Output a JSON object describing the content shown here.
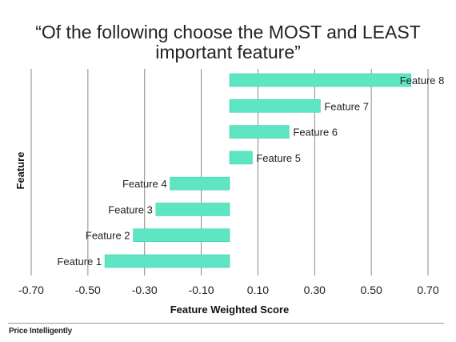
{
  "title_line1": "“Of the following choose the MOST and LEAST",
  "title_line2": "important feature”",
  "brand": "Price Intelligently",
  "colors": {
    "bar": "#5ee6c4",
    "bar_edge": "#3fcfab",
    "grid": "#8a8a8a"
  },
  "chart_data": {
    "type": "bar",
    "orientation": "horizontal",
    "categories": [
      "Feature 1",
      "Feature 2",
      "Feature 3",
      "Feature 4",
      "Feature 5",
      "Feature 6",
      "Feature 7",
      "Feature 8"
    ],
    "values": [
      -0.44,
      -0.34,
      -0.26,
      -0.21,
      0.08,
      0.21,
      0.32,
      0.64
    ],
    "xlabel": "Feature Weighted Score",
    "ylabel": "Feature",
    "xlim": [
      -0.7,
      0.7
    ],
    "xticks": [
      "-0.70",
      "-0.50",
      "-0.30",
      "-0.10",
      "0.10",
      "0.30",
      "0.50",
      "0.70"
    ],
    "grid": "vertical"
  }
}
